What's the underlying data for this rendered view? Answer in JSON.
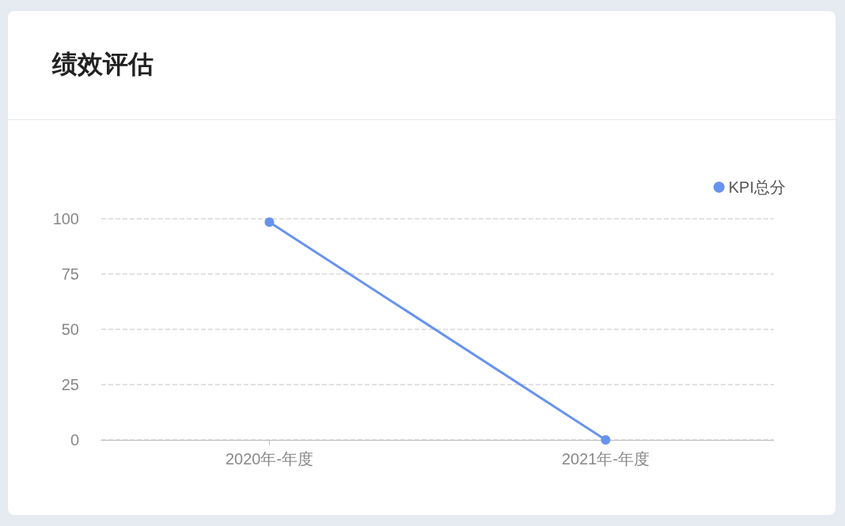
{
  "chart_data": {
    "type": "line",
    "title": "绩效评估",
    "categories": [
      "2020年-年度",
      "2021年-年度"
    ],
    "series": [
      {
        "name": "KPI总分",
        "color": "#6793ee",
        "values": [
          98.5,
          0
        ]
      }
    ],
    "ylim": [
      0,
      100
    ],
    "yticks": [
      0,
      25,
      50,
      75,
      100
    ],
    "grid": "y",
    "legend": "top right",
    "marker": "circle",
    "line_style": "solid"
  }
}
